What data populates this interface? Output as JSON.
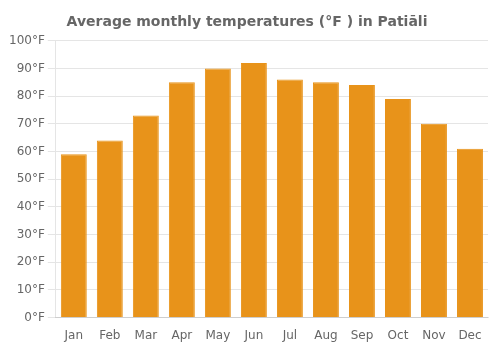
{
  "chart_data": {
    "type": "bar",
    "title": "Average monthly temperatures (°F ) in Patiāli",
    "categories": [
      "Jan",
      "Feb",
      "Mar",
      "Apr",
      "May",
      "Jun",
      "Jul",
      "Aug",
      "Sep",
      "Oct",
      "Nov",
      "Dec"
    ],
    "values": [
      59,
      64,
      73,
      85,
      90,
      92,
      86,
      85,
      84,
      79,
      70,
      61
    ],
    "color": "#E8931A",
    "ylim": [
      0,
      100
    ],
    "yticks": [
      {
        "value": 0,
        "label": "0°F"
      },
      {
        "value": 10,
        "label": "10°F"
      },
      {
        "value": 20,
        "label": "20°F"
      },
      {
        "value": 30,
        "label": "30°F"
      },
      {
        "value": 40,
        "label": "40°F"
      },
      {
        "value": 50,
        "label": "50°F"
      },
      {
        "value": 60,
        "label": "60°F"
      },
      {
        "value": 70,
        "label": "70°F"
      },
      {
        "value": 80,
        "label": "80°F"
      },
      {
        "value": 90,
        "label": "90°F"
      },
      {
        "value": 100,
        "label": "100°F"
      }
    ],
    "grid": true
  }
}
